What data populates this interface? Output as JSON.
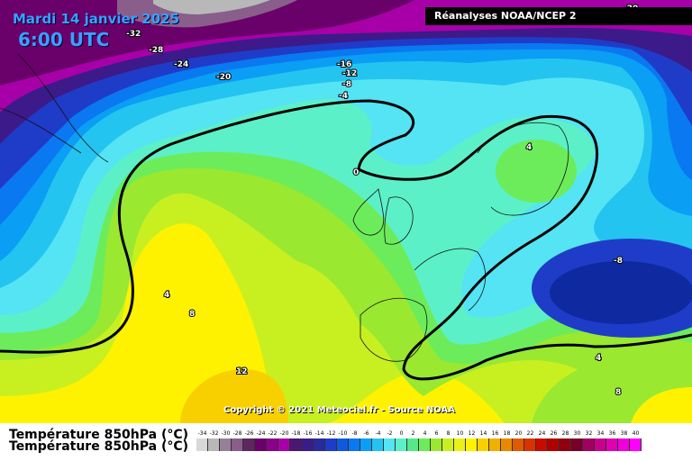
{
  "header": {
    "date": "Mardi 14 janvier 2025",
    "time": "6:00 UTC",
    "source": "Réanalyses NOAA/NCEP 2"
  },
  "copyright": "Copyright © 2021 Meteociel.fr - Source NOAA",
  "legend": {
    "title": "Température 850hPa (°C)",
    "ticks": [
      "-34",
      "-32",
      "-30",
      "-28",
      "-26",
      "-24",
      "-22",
      "-20",
      "-18",
      "-16",
      "-14",
      "-12",
      "-10",
      "-8",
      "-6",
      "-4",
      "-2",
      "0",
      "2",
      "4",
      "6",
      "8",
      "10",
      "12",
      "14",
      "16",
      "18",
      "20",
      "22",
      "24",
      "26",
      "28",
      "30",
      "32",
      "34",
      "36",
      "38",
      "40"
    ],
    "colors": [
      "#d8d8d8",
      "#b8b8b8",
      "#987f98",
      "#8a5e8a",
      "#5e285e",
      "#6a006a",
      "#8a008a",
      "#a800a8",
      "#4a1870",
      "#3c1a8a",
      "#2a2a9c",
      "#1f3cc8",
      "#0f5adc",
      "#0a78f0",
      "#0a9ef4",
      "#24c4f0",
      "#54e4f4",
      "#5cf0c8",
      "#56e88a",
      "#6cec5a",
      "#9ae830",
      "#c8f020",
      "#ecf018",
      "#fff200",
      "#f8d000",
      "#f0b000",
      "#e88a00",
      "#e05a00",
      "#d83400",
      "#c80a00",
      "#b00000",
      "#900010",
      "#780028",
      "#a00060",
      "#c8008c",
      "#e000b4",
      "#f000d8",
      "#ff00ff"
    ]
  },
  "map_labels": [
    "-32",
    "-28",
    "-24",
    "-20",
    "-16",
    "-12",
    "-8",
    "-4",
    "0",
    "4",
    "4",
    "8",
    "12",
    "-8",
    "4",
    "8",
    "-20"
  ]
}
